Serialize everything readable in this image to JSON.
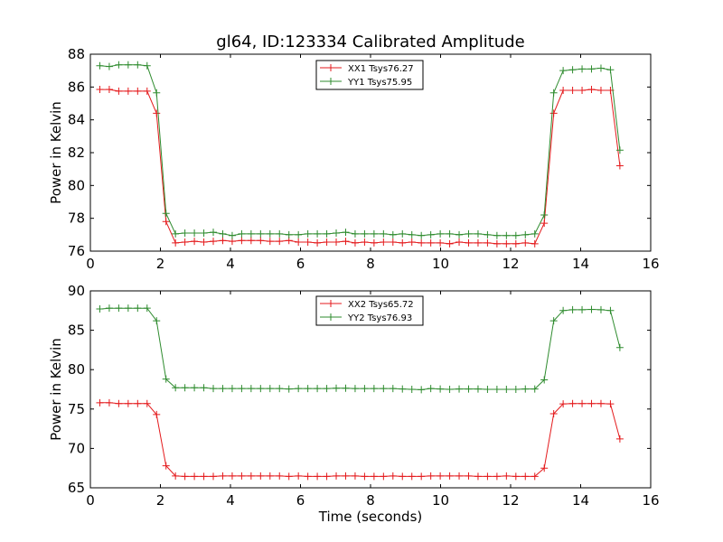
{
  "chart_data": [
    {
      "type": "line",
      "title": "gl64, ID:123334 Calibrated Amplitude",
      "xlabel": "",
      "ylabel": "Power in Kelvin",
      "xlim": [
        0,
        16
      ],
      "ylim": [
        76,
        88
      ],
      "xticks": [
        "0",
        "2",
        "4",
        "6",
        "8",
        "10",
        "12",
        "14",
        "16"
      ],
      "yticks": [
        "76",
        "78",
        "80",
        "82",
        "84",
        "86",
        "88"
      ],
      "grid": false,
      "legend_position": "top-center",
      "x": [
        0.27,
        0.54,
        0.81,
        1.08,
        1.35,
        1.62,
        1.89,
        2.16,
        2.43,
        2.7,
        2.97,
        3.24,
        3.51,
        3.78,
        4.05,
        4.32,
        4.59,
        4.86,
        5.13,
        5.4,
        5.67,
        5.94,
        6.21,
        6.48,
        6.75,
        7.02,
        7.29,
        7.56,
        7.83,
        8.1,
        8.37,
        8.64,
        8.91,
        9.18,
        9.45,
        9.72,
        9.99,
        10.26,
        10.53,
        10.8,
        11.07,
        11.34,
        11.61,
        11.88,
        12.15,
        12.42,
        12.69,
        12.96,
        13.23,
        13.5,
        13.77,
        14.04,
        14.31,
        14.58,
        14.85,
        15.12
      ],
      "series": [
        {
          "name": "XX1 Tsys76.27",
          "color": "#e41a1c",
          "values": [
            85.85,
            85.85,
            85.75,
            85.75,
            85.75,
            85.75,
            84.4,
            77.8,
            76.5,
            76.55,
            76.6,
            76.55,
            76.6,
            76.65,
            76.6,
            76.65,
            76.65,
            76.65,
            76.6,
            76.6,
            76.65,
            76.55,
            76.55,
            76.5,
            76.55,
            76.55,
            76.6,
            76.5,
            76.55,
            76.5,
            76.55,
            76.55,
            76.5,
            76.55,
            76.5,
            76.5,
            76.5,
            76.45,
            76.55,
            76.5,
            76.5,
            76.5,
            76.45,
            76.45,
            76.45,
            76.5,
            76.45,
            77.7,
            84.4,
            85.8,
            85.8,
            85.8,
            85.85,
            85.8,
            85.8,
            81.2
          ]
        },
        {
          "name": "YY1 Tsys75.95",
          "color": "#2e8b2e",
          "values": [
            87.3,
            87.25,
            87.35,
            87.35,
            87.35,
            87.3,
            85.65,
            78.3,
            77.05,
            77.1,
            77.1,
            77.1,
            77.15,
            77.05,
            76.95,
            77.05,
            77.05,
            77.05,
            77.05,
            77.05,
            77.0,
            77.0,
            77.05,
            77.05,
            77.05,
            77.1,
            77.15,
            77.05,
            77.05,
            77.05,
            77.05,
            77.0,
            77.05,
            77.0,
            76.95,
            77.0,
            77.05,
            77.05,
            77.0,
            77.05,
            77.05,
            77.0,
            76.95,
            76.95,
            76.95,
            77.0,
            77.05,
            78.2,
            85.65,
            87.0,
            87.05,
            87.1,
            87.1,
            87.15,
            87.05,
            82.15
          ]
        }
      ]
    },
    {
      "type": "line",
      "title": "",
      "xlabel": "Time (seconds)",
      "ylabel": "Power in Kelvin",
      "xlim": [
        0,
        16
      ],
      "ylim": [
        65,
        90
      ],
      "xticks": [
        "0",
        "2",
        "4",
        "6",
        "8",
        "10",
        "12",
        "14",
        "16"
      ],
      "yticks": [
        "65",
        "70",
        "75",
        "80",
        "85",
        "90"
      ],
      "grid": false,
      "legend_position": "top-center",
      "x": [
        0.27,
        0.54,
        0.81,
        1.08,
        1.35,
        1.62,
        1.89,
        2.16,
        2.43,
        2.7,
        2.97,
        3.24,
        3.51,
        3.78,
        4.05,
        4.32,
        4.59,
        4.86,
        5.13,
        5.4,
        5.67,
        5.94,
        6.21,
        6.48,
        6.75,
        7.02,
        7.29,
        7.56,
        7.83,
        8.1,
        8.37,
        8.64,
        8.91,
        9.18,
        9.45,
        9.72,
        9.99,
        10.26,
        10.53,
        10.8,
        11.07,
        11.34,
        11.61,
        11.88,
        12.15,
        12.42,
        12.69,
        12.96,
        13.23,
        13.5,
        13.77,
        14.04,
        14.31,
        14.58,
        14.85,
        15.12
      ],
      "series": [
        {
          "name": "XX2 Tsys65.72",
          "color": "#e41a1c",
          "values": [
            75.8,
            75.8,
            75.7,
            75.7,
            75.7,
            75.7,
            74.3,
            67.8,
            66.5,
            66.45,
            66.45,
            66.45,
            66.45,
            66.5,
            66.5,
            66.5,
            66.5,
            66.5,
            66.5,
            66.5,
            66.45,
            66.5,
            66.45,
            66.45,
            66.45,
            66.5,
            66.5,
            66.5,
            66.45,
            66.45,
            66.45,
            66.5,
            66.45,
            66.45,
            66.45,
            66.5,
            66.5,
            66.5,
            66.5,
            66.5,
            66.45,
            66.45,
            66.45,
            66.5,
            66.45,
            66.45,
            66.45,
            67.5,
            74.4,
            75.65,
            75.7,
            75.7,
            75.7,
            75.7,
            75.65,
            71.2
          ]
        },
        {
          "name": "YY2 Tsys76.93",
          "color": "#2e8b2e",
          "values": [
            87.7,
            87.8,
            87.8,
            87.8,
            87.8,
            87.8,
            86.2,
            78.8,
            77.7,
            77.7,
            77.7,
            77.7,
            77.6,
            77.6,
            77.6,
            77.6,
            77.6,
            77.6,
            77.6,
            77.6,
            77.55,
            77.6,
            77.6,
            77.6,
            77.6,
            77.65,
            77.65,
            77.6,
            77.6,
            77.6,
            77.6,
            77.6,
            77.55,
            77.5,
            77.45,
            77.6,
            77.55,
            77.5,
            77.55,
            77.55,
            77.55,
            77.5,
            77.5,
            77.5,
            77.5,
            77.55,
            77.55,
            78.7,
            86.2,
            87.5,
            87.6,
            87.6,
            87.65,
            87.6,
            87.5,
            82.8
          ]
        }
      ]
    }
  ]
}
